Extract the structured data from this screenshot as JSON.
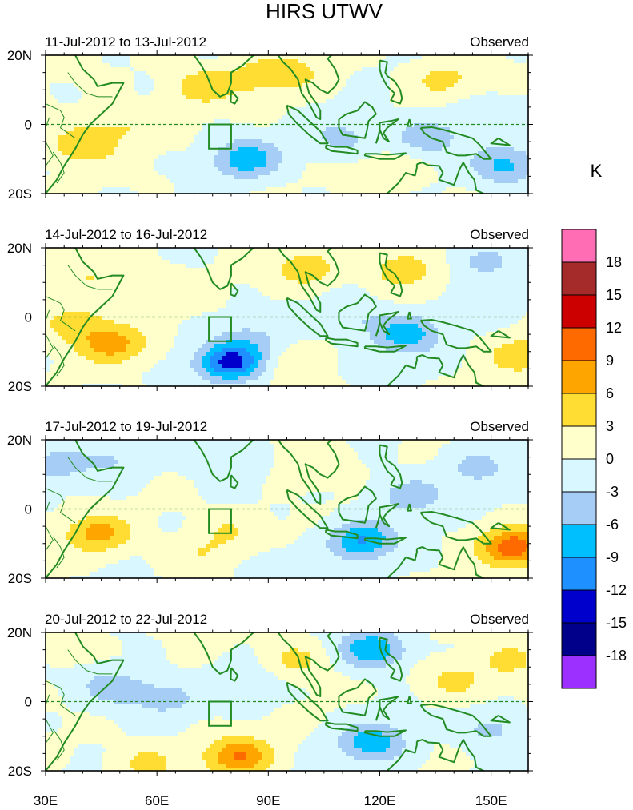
{
  "figure": {
    "title": "HIRS UTWV",
    "units_label": "K",
    "color_scale": {
      "levels": [
        "18",
        "15",
        "12",
        "9",
        "6",
        "3",
        "0",
        "-3",
        "-6",
        "-9",
        "-12",
        "-15",
        "-18"
      ],
      "colors": [
        "#ff6eb4",
        "#a52a2a",
        "#cd0000",
        "#ff6a00",
        "#ffa500",
        "#ffdd33",
        "#ffffcc",
        "#d9f7ff",
        "#a6cdf6",
        "#00bfff",
        "#1e90ff",
        "#0000cd",
        "#00008b",
        "#9b30ff"
      ]
    },
    "box_color": "#228b22"
  },
  "chart_data": {
    "type": "heatmap",
    "x": {
      "range": [
        30,
        160
      ],
      "ticks": [
        30,
        60,
        90,
        120,
        150
      ],
      "tick_labels": [
        "30E",
        "60E",
        "90E",
        "120E",
        "150E"
      ]
    },
    "y": {
      "range": [
        -20,
        20
      ],
      "ticks": [
        20,
        0,
        -20
      ],
      "tick_labels": [
        "20N",
        "0",
        "20S"
      ]
    },
    "target_box": {
      "lon": [
        74,
        80
      ],
      "lat": [
        -7,
        0
      ]
    },
    "panels": [
      {
        "period": "11-Jul-2012 to 13-Jul-2012",
        "label": "Observed",
        "anomalies": [
          {
            "lon": 72,
            "lat": 11,
            "value": 5
          },
          {
            "lon": 88,
            "lat": 14,
            "value": 4
          },
          {
            "lon": 98,
            "lat": 15,
            "value": 3
          },
          {
            "lon": 137,
            "lat": 13,
            "value": 4
          },
          {
            "lon": 40,
            "lat": -6,
            "value": 6
          },
          {
            "lon": 52,
            "lat": 0,
            "value": 3
          },
          {
            "lon": 84,
            "lat": -10,
            "value": -8
          },
          {
            "lon": 110,
            "lat": -4,
            "value": -4
          },
          {
            "lon": 132,
            "lat": -4,
            "value": -5
          },
          {
            "lon": 154,
            "lat": -12,
            "value": -7
          },
          {
            "lon": 147,
            "lat": 2,
            "value": -3
          },
          {
            "lon": 123,
            "lat": -14,
            "value": 3
          }
        ]
      },
      {
        "period": "14-Jul-2012 to 16-Jul-2012",
        "label": "Observed",
        "anomalies": [
          {
            "lon": 48,
            "lat": -8,
            "value": 7
          },
          {
            "lon": 38,
            "lat": -2,
            "value": 5
          },
          {
            "lon": 42,
            "lat": 12,
            "value": 3
          },
          {
            "lon": 60,
            "lat": 8,
            "value": 3
          },
          {
            "lon": 80,
            "lat": -13,
            "value": -13
          },
          {
            "lon": 85,
            "lat": -6,
            "value": -3
          },
          {
            "lon": 100,
            "lat": 14,
            "value": 5
          },
          {
            "lon": 126,
            "lat": 14,
            "value": 5
          },
          {
            "lon": 127,
            "lat": -5,
            "value": -8
          },
          {
            "lon": 112,
            "lat": 0,
            "value": -3
          },
          {
            "lon": 148,
            "lat": 16,
            "value": -4
          },
          {
            "lon": 158,
            "lat": -11,
            "value": 5
          },
          {
            "lon": 95,
            "lat": -14,
            "value": 2
          }
        ]
      },
      {
        "period": "17-Jul-2012 to 19-Jul-2012",
        "label": "Observed",
        "anomalies": [
          {
            "lon": 44,
            "lat": -7,
            "value": 7
          },
          {
            "lon": 32,
            "lat": 13,
            "value": -4
          },
          {
            "lon": 48,
            "lat": 14,
            "value": -3
          },
          {
            "lon": 78,
            "lat": 14,
            "value": -3
          },
          {
            "lon": 80,
            "lat": -6,
            "value": 3
          },
          {
            "lon": 72,
            "lat": -13,
            "value": 3
          },
          {
            "lon": 115,
            "lat": -9,
            "value": -9
          },
          {
            "lon": 128,
            "lat": 4,
            "value": -5
          },
          {
            "lon": 102,
            "lat": 13,
            "value": 3
          },
          {
            "lon": 156,
            "lat": -11,
            "value": 11
          },
          {
            "lon": 146,
            "lat": 12,
            "value": -4
          },
          {
            "lon": 92,
            "lat": -18,
            "value": -3
          }
        ]
      },
      {
        "period": "20-Jul-2012 to 22-Jul-2012",
        "label": "Observed",
        "anomalies": [
          {
            "lon": 82,
            "lat": -16,
            "value": 9
          },
          {
            "lon": 57,
            "lat": -18,
            "value": 4
          },
          {
            "lon": 48,
            "lat": 4,
            "value": -5
          },
          {
            "lon": 62,
            "lat": 1,
            "value": -4
          },
          {
            "lon": 118,
            "lat": 15,
            "value": -9
          },
          {
            "lon": 118,
            "lat": -12,
            "value": -8
          },
          {
            "lon": 97,
            "lat": 12,
            "value": 4
          },
          {
            "lon": 140,
            "lat": 6,
            "value": 4
          },
          {
            "lon": 155,
            "lat": 12,
            "value": 4
          },
          {
            "lon": 150,
            "lat": -8,
            "value": -4
          },
          {
            "lon": 35,
            "lat": 17,
            "value": 3
          },
          {
            "lon": 84,
            "lat": 5,
            "value": -3
          }
        ]
      }
    ]
  }
}
